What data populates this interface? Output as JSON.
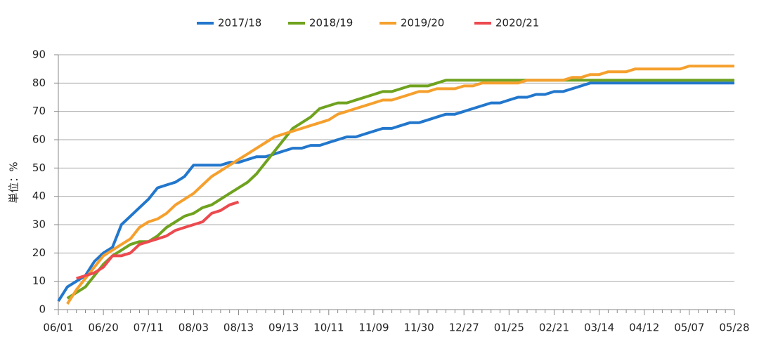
{
  "chart_data": {
    "type": "line",
    "y_label": "単位：%",
    "categories": [
      "06/01",
      null,
      null,
      null,
      null,
      "06/20",
      null,
      null,
      null,
      null,
      "07/11",
      null,
      null,
      null,
      null,
      "08/03",
      null,
      null,
      null,
      null,
      "08/13",
      null,
      null,
      null,
      null,
      "09/13",
      null,
      null,
      null,
      null,
      "10/11",
      null,
      null,
      null,
      null,
      "11/09",
      null,
      null,
      null,
      null,
      "11/30",
      null,
      null,
      null,
      null,
      "12/27",
      null,
      null,
      null,
      null,
      "01/25",
      null,
      null,
      null,
      null,
      "02/21",
      null,
      null,
      null,
      null,
      "03/14",
      null,
      null,
      null,
      null,
      "04/12",
      null,
      null,
      null,
      null,
      "05/07",
      null,
      null,
      null,
      null,
      "05/28"
    ],
    "series": [
      {
        "name": "2017/18",
        "color": "#2277cc",
        "values": [
          3,
          8,
          10,
          12,
          17,
          20,
          22,
          30,
          33,
          36,
          39,
          43,
          44,
          45,
          47,
          51,
          51,
          51,
          51,
          52,
          52,
          53,
          54,
          54,
          55,
          56,
          57,
          57,
          58,
          58,
          59,
          60,
          61,
          61,
          62,
          63,
          64,
          64,
          65,
          66,
          66,
          67,
          68,
          69,
          69,
          70,
          71,
          72,
          73,
          73,
          74,
          75,
          75,
          76,
          76,
          77,
          77,
          78,
          79,
          80,
          80,
          80,
          80,
          80,
          80,
          80,
          80,
          80,
          80,
          80,
          80,
          80,
          80,
          80,
          80,
          80
        ]
      },
      {
        "name": "2018/19",
        "color": "#6fa21f",
        "values": [
          null,
          4,
          6,
          8,
          12,
          16,
          19,
          21,
          23,
          24,
          24,
          26,
          29,
          31,
          33,
          34,
          36,
          37,
          39,
          41,
          43,
          45,
          48,
          52,
          56,
          60,
          64,
          66,
          68,
          71,
          72,
          73,
          73,
          74,
          75,
          76,
          77,
          77,
          78,
          79,
          79,
          79,
          80,
          81,
          81,
          81,
          81,
          81,
          81,
          81,
          81,
          81,
          81,
          81,
          81,
          81,
          81,
          81,
          81,
          81,
          81,
          81,
          81,
          81,
          81,
          81,
          81,
          81,
          81,
          81,
          81,
          81,
          81,
          81,
          81,
          81
        ]
      },
      {
        "name": "2019/20",
        "color": "#f5a02e",
        "values": [
          null,
          2,
          7,
          11,
          15,
          19,
          21,
          23,
          25,
          29,
          31,
          32,
          34,
          37,
          39,
          41,
          44,
          47,
          49,
          51,
          53,
          55,
          57,
          59,
          61,
          62,
          63,
          64,
          65,
          66,
          67,
          69,
          70,
          71,
          72,
          73,
          74,
          74,
          75,
          76,
          77,
          77,
          78,
          78,
          78,
          79,
          79,
          80,
          80,
          80,
          80,
          80,
          81,
          81,
          81,
          81,
          81,
          82,
          82,
          83,
          83,
          84,
          84,
          84,
          85,
          85,
          85,
          85,
          85,
          85,
          86,
          86,
          86,
          86,
          86,
          86
        ]
      },
      {
        "name": "2020/21",
        "color": "#ec4a4f",
        "values": [
          null,
          null,
          11,
          12,
          13,
          15,
          19,
          19,
          20,
          23,
          24,
          25,
          26,
          28,
          29,
          30,
          31,
          34,
          35,
          37,
          38,
          null,
          null,
          null,
          null,
          null,
          null,
          null,
          null,
          null,
          null,
          null,
          null,
          null,
          null,
          null,
          null,
          null,
          null,
          null,
          null,
          null,
          null,
          null,
          null,
          null,
          null,
          null,
          null,
          null,
          null,
          null,
          null,
          null,
          null,
          null,
          null,
          null,
          null,
          null,
          null,
          null,
          null,
          null,
          null,
          null,
          null,
          null,
          null,
          null,
          null,
          null,
          null,
          null,
          null,
          null
        ]
      }
    ],
    "ylim": [
      0,
      90
    ],
    "yticks": [
      0,
      10,
      20,
      30,
      40,
      50,
      60,
      70,
      80,
      90
    ],
    "grid": true,
    "legend": "top"
  }
}
